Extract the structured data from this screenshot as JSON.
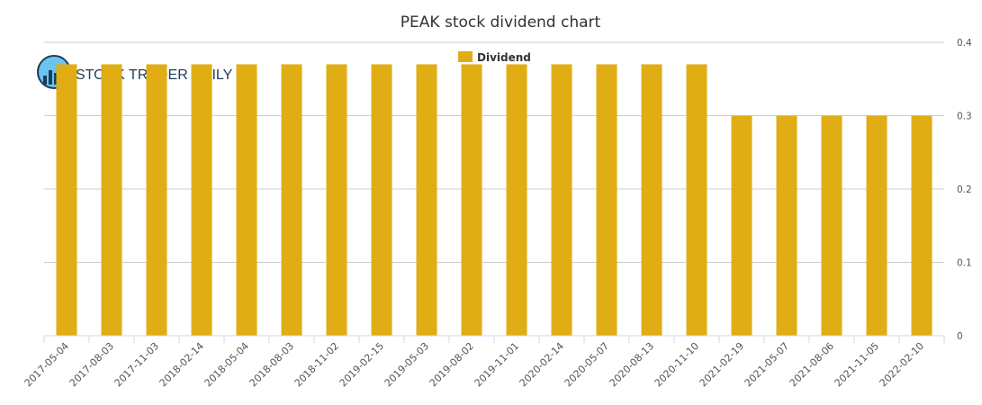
{
  "chart_data": {
    "type": "bar",
    "title": "PEAK stock dividend chart",
    "xlabel": "",
    "ylabel": "",
    "categories": [
      "2017-05-04",
      "2017-08-03",
      "2017-11-03",
      "2018-02-14",
      "2018-05-04",
      "2018-08-03",
      "2018-11-02",
      "2019-02-15",
      "2019-05-03",
      "2019-08-02",
      "2019-11-01",
      "2020-02-14",
      "2020-05-07",
      "2020-08-13",
      "2020-11-10",
      "2021-02-19",
      "2021-05-07",
      "2021-08-06",
      "2021-11-05",
      "2022-02-10"
    ],
    "series": [
      {
        "name": "Dividend",
        "color": "#e0ae14",
        "values": [
          0.37,
          0.37,
          0.37,
          0.37,
          0.37,
          0.37,
          0.37,
          0.37,
          0.37,
          0.37,
          0.37,
          0.37,
          0.37,
          0.37,
          0.37,
          0.3,
          0.3,
          0.3,
          0.3,
          0.3
        ]
      }
    ],
    "ylim": [
      0,
      0.4
    ],
    "yticks": [
      "0",
      "0.1",
      "0.2",
      "0.3",
      "0.4"
    ],
    "y_axis_side": "right",
    "grid": true,
    "legend": "top-center"
  },
  "watermark": {
    "text": "STOCK TRADER DAILY"
  }
}
